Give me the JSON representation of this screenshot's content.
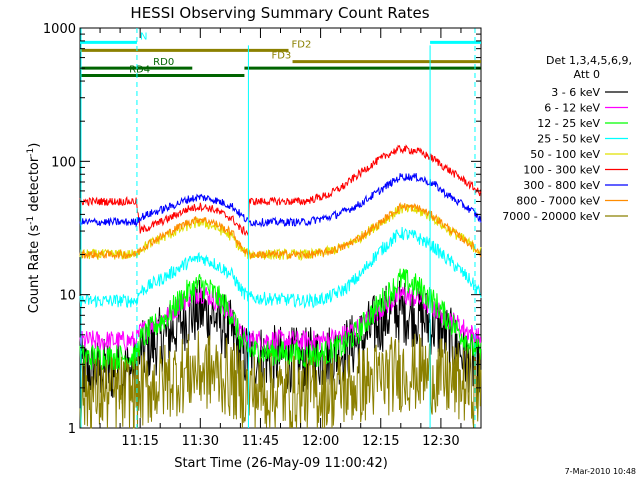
{
  "chart_data": {
    "type": "line",
    "title": "HESSI Observing Summary Count Rates",
    "xlabel": "Start Time (26-May-09 11:00:42)",
    "ylabel_main": "Count Rate (s",
    "ylabel_sup1": "-1",
    "ylabel_mid": " detector",
    "ylabel_sup2": "-1",
    "ylabel_end": ")",
    "yscale": "log",
    "ylim": [
      1,
      1000
    ],
    "xlim_minutes": [
      0,
      100
    ],
    "x_tick_minutes": [
      15,
      30,
      45,
      60,
      75,
      90
    ],
    "x_tick_labels": [
      "11:15",
      "11:30",
      "11:45",
      "12:00",
      "12:15",
      "12:30"
    ],
    "y_tick_labels": [
      "1",
      "10",
      "100",
      "1000"
    ],
    "y_tick_values": [
      1,
      10,
      100,
      1000
    ],
    "timestamp": "7-Mar-2010 10:48",
    "legend": {
      "header1": "Det 1,3,4,5,6,9,",
      "header2": "Att 0",
      "position": "right"
    },
    "series": [
      {
        "name": "3 - 6 keV",
        "color": "#000000",
        "x": [
          0,
          14,
          15,
          22,
          27,
          30,
          33,
          38,
          40,
          42,
          56,
          58,
          62,
          66,
          70,
          74,
          78,
          80,
          84,
          88,
          91,
          94,
          98,
          100
        ],
        "y": [
          2.7,
          2.7,
          3.5,
          5,
          7,
          7.5,
          7,
          5,
          3.5,
          3.5,
          3.2,
          3.3,
          3.5,
          3.8,
          4.5,
          6,
          7.5,
          7.5,
          7,
          6,
          5,
          4,
          3,
          2.8
        ],
        "noise": 0.25
      },
      {
        "name": "6 - 12 keV",
        "color": "#ff00ff",
        "x": [
          0,
          14,
          15,
          22,
          27,
          30,
          33,
          38,
          40,
          42,
          56,
          58,
          62,
          66,
          70,
          74,
          78,
          80,
          84,
          88,
          91,
          94,
          98,
          100
        ],
        "y": [
          4.5,
          4.5,
          5.2,
          7,
          9.5,
          10.5,
          9.5,
          7,
          5,
          4.6,
          4.5,
          4.5,
          4.6,
          5,
          5.8,
          7.5,
          9,
          10,
          9.5,
          8,
          7,
          6,
          5,
          4.6
        ],
        "noise": 0.08
      },
      {
        "name": "12 - 25 keV",
        "color": "#00ff00",
        "x": [
          0,
          14,
          15,
          22,
          27,
          30,
          33,
          38,
          40,
          42,
          56,
          58,
          62,
          66,
          70,
          74,
          78,
          80,
          84,
          88,
          91,
          94,
          98,
          100
        ],
        "y": [
          3.4,
          3.4,
          4.5,
          7,
          10.5,
          12,
          10.5,
          7,
          4.5,
          3.8,
          3.5,
          3.5,
          3.7,
          4.2,
          5.5,
          8,
          11,
          13,
          11.5,
          9,
          7,
          5.5,
          4,
          3.6
        ],
        "noise": 0.1
      },
      {
        "name": "25 - 50 keV",
        "color": "#00ffff",
        "x": [
          0,
          14,
          15,
          22,
          27,
          30,
          33,
          38,
          40,
          42,
          56,
          58,
          62,
          66,
          70,
          74,
          78,
          80,
          84,
          88,
          91,
          94,
          98,
          100
        ],
        "y": [
          9,
          9,
          10.5,
          14,
          17.5,
          19,
          17.5,
          14,
          11,
          9.5,
          9,
          9,
          9.5,
          11,
          14,
          20,
          26,
          29,
          27,
          23,
          19,
          16,
          12,
          10
        ],
        "noise": 0.05
      },
      {
        "name": "50 - 100 keV",
        "color": "#e0e000",
        "x": [
          0,
          14,
          15,
          22,
          27,
          30,
          33,
          38,
          40,
          42,
          56,
          58,
          62,
          66,
          70,
          74,
          78,
          80,
          84,
          88,
          91,
          94,
          98,
          100
        ],
        "y": [
          20,
          20,
          22,
          28,
          33,
          35,
          33,
          27,
          22,
          20,
          20,
          20,
          21,
          23,
          27,
          33,
          40,
          44,
          43,
          38,
          32,
          28,
          23,
          21
        ],
        "noise": 0.04
      },
      {
        "name": "100 - 300 keV",
        "color": "#ff0000",
        "x": [
          0,
          14,
          15,
          22,
          27,
          30,
          33,
          38,
          40,
          42,
          42.1,
          56,
          58,
          62,
          66,
          70,
          74,
          78,
          80,
          84,
          88,
          91,
          94,
          98,
          100
        ],
        "y": [
          50,
          50,
          30,
          37,
          44,
          46,
          44,
          37,
          31,
          29,
          50,
          50,
          52,
          56,
          66,
          82,
          100,
          118,
          124,
          120,
          105,
          90,
          78,
          64,
          56
        ],
        "noise": 0.03
      },
      {
        "name": "300 - 800 keV",
        "color": "#0000ff",
        "x": [
          0,
          14,
          15,
          22,
          27,
          30,
          33,
          38,
          40,
          42,
          56,
          58,
          62,
          66,
          70,
          74,
          78,
          80,
          84,
          88,
          91,
          94,
          98,
          100
        ],
        "y": [
          35,
          35,
          38,
          45,
          52,
          54,
          52,
          46,
          40,
          35,
          35,
          36,
          38,
          42,
          48,
          58,
          70,
          77,
          76,
          68,
          58,
          50,
          42,
          36
        ],
        "noise": 0.03
      },
      {
        "name": "800 - 7000 keV",
        "color": "#ff8c00",
        "x": [
          0,
          14,
          15,
          22,
          27,
          30,
          33,
          38,
          40,
          42,
          56,
          58,
          62,
          66,
          70,
          74,
          78,
          80,
          84,
          88,
          91,
          94,
          98,
          100
        ],
        "y": [
          20,
          20,
          22,
          29,
          35,
          37,
          35,
          29,
          23,
          20,
          20,
          20,
          21,
          23,
          27,
          33,
          41,
          46,
          45,
          39,
          33,
          28,
          23,
          20
        ],
        "noise": 0.03
      },
      {
        "name": "7000 - 20000 keV",
        "color": "#8b8000",
        "x": [
          0,
          14,
          15,
          22,
          27,
          30,
          33,
          38,
          40,
          42,
          56,
          58,
          62,
          66,
          70,
          74,
          78,
          80,
          84,
          88,
          91,
          94,
          98,
          100
        ],
        "y": [
          1.8,
          1.8,
          1.9,
          2.3,
          2.6,
          2.7,
          2.6,
          2.3,
          2,
          1.9,
          1.8,
          1.8,
          1.9,
          2,
          2.1,
          2.3,
          2.5,
          2.6,
          2.6,
          2.5,
          2.3,
          2.2,
          2,
          1.9
        ],
        "noise": 0.3
      }
    ],
    "flags": [
      {
        "label": "N",
        "color": "#00ffff",
        "y": 780,
        "segments": [
          [
            0,
            14.2
          ],
          [
            87.3,
            100
          ]
        ],
        "label_x": 14.2
      },
      {
        "label": "FD2",
        "color": "#8b8000",
        "y": 680,
        "segments": [
          [
            0,
            52
          ]
        ],
        "label_x": 52
      },
      {
        "label": "FD3",
        "color": "#8b8000",
        "y": 560,
        "segments": [
          [
            53,
            100
          ]
        ],
        "label_x": 47
      },
      {
        "label": "RD0",
        "color": "#006400",
        "y": 500,
        "segments": [
          [
            0,
            28
          ],
          [
            41,
            100
          ]
        ],
        "label_x": 17.5
      },
      {
        "label": "RD4",
        "color": "#006400",
        "y": 440,
        "segments": [
          [
            0,
            41
          ]
        ],
        "label_x": 11.5
      }
    ],
    "vlines_solid": [
      42,
      87.3
    ],
    "vlines_dashed": [
      14.2,
      98.5
    ]
  }
}
